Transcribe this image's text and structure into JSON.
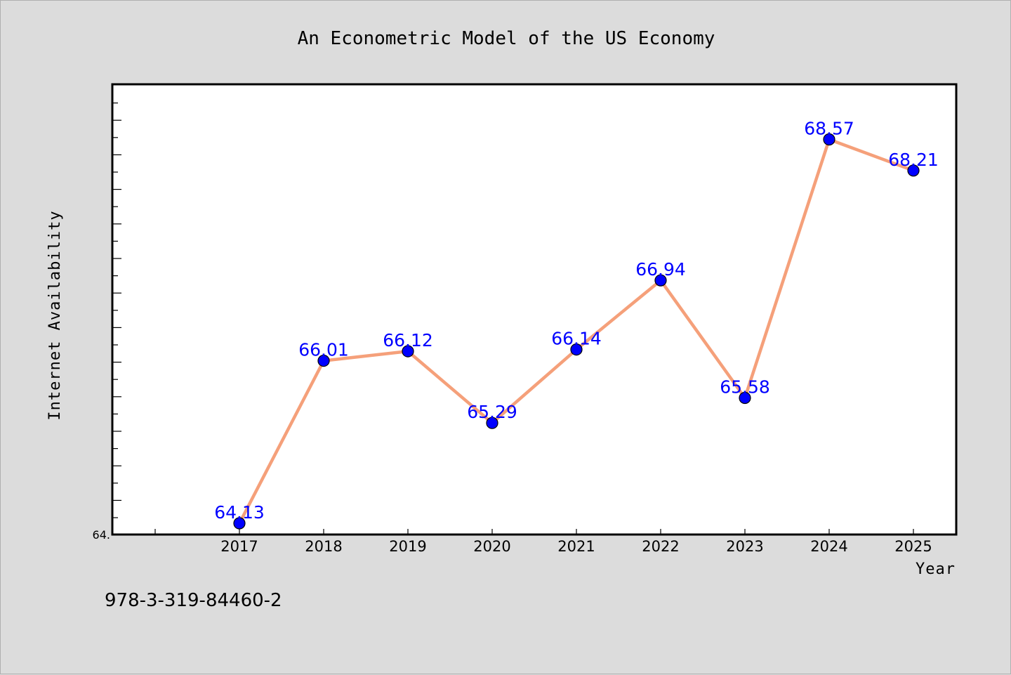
{
  "chart_data": {
    "type": "line",
    "title": "An Econometric Model of the US Economy",
    "xlabel": "Year",
    "ylabel": "Internet Availability",
    "x": [
      "2017",
      "2018",
      "2019",
      "2020",
      "2021",
      "2022",
      "2023",
      "2024",
      "2025"
    ],
    "series": [
      {
        "values": [
          64.13,
          66.01,
          66.12,
          65.29,
          66.14,
          66.94,
          65.58,
          68.57,
          68.21
        ],
        "value_labels": [
          "64.13",
          "66.01",
          "66.12",
          "65.29",
          "66.14",
          "66.94",
          "65.58",
          "68.57",
          "68.21"
        ],
        "line_color": "#f5a07a",
        "marker_color": "#0000ff"
      }
    ],
    "ylim": [
      64.0,
      69.2
    ],
    "ytick_label": "64.",
    "grid": false,
    "label_color": "#0000ff"
  },
  "footnote": "978-3-319-84460-2"
}
